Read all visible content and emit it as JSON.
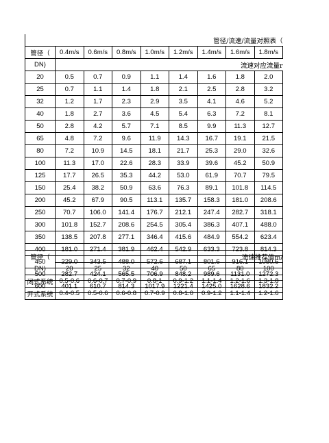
{
  "table1": {
    "title": "管径/流速/流量对照表（",
    "dn_header_top": "管径（",
    "dn_header_bottom": "DN)",
    "velocities": [
      "0.4m/s",
      "0.6m/s",
      "0.8m/s",
      "1.0m/s",
      "1.2m/s",
      "1.4m/s",
      "1.6m/s",
      "1.8m/s"
    ],
    "flow_caption": "流速对应流量r",
    "rows": [
      {
        "dn": "20",
        "values": [
          "0.5",
          "0.7",
          "0.9",
          "1.1",
          "1.4",
          "1.6",
          "1.8",
          "2.0"
        ]
      },
      {
        "dn": "25",
        "values": [
          "0.7",
          "1.1",
          "1.4",
          "1.8",
          "2.1",
          "2.5",
          "2.8",
          "3.2"
        ]
      },
      {
        "dn": "32",
        "values": [
          "1.2",
          "1.7",
          "2.3",
          "2.9",
          "3.5",
          "4.1",
          "4.6",
          "5.2"
        ]
      },
      {
        "dn": "40",
        "values": [
          "1.8",
          "2.7",
          "3.6",
          "4.5",
          "5.4",
          "6.3",
          "7.2",
          "8.1"
        ]
      },
      {
        "dn": "50",
        "values": [
          "2.8",
          "4.2",
          "5.7",
          "7.1",
          "8.5",
          "9.9",
          "11.3",
          "12.7"
        ]
      },
      {
        "dn": "65",
        "values": [
          "4.8",
          "7.2",
          "9.6",
          "11.9",
          "14.3",
          "16.7",
          "19.1",
          "21.5"
        ]
      },
      {
        "dn": "80",
        "values": [
          "7.2",
          "10.9",
          "14.5",
          "18.1",
          "21.7",
          "25.3",
          "29.0",
          "32.6"
        ]
      },
      {
        "dn": "100",
        "values": [
          "11.3",
          "17.0",
          "22.6",
          "28.3",
          "33.9",
          "39.6",
          "45.2",
          "50.9"
        ]
      },
      {
        "dn": "125",
        "values": [
          "17.7",
          "26.5",
          "35.3",
          "44.2",
          "53.0",
          "61.9",
          "70.7",
          "79.5"
        ]
      },
      {
        "dn": "150",
        "values": [
          "25.4",
          "38.2",
          "50.9",
          "63.6",
          "76.3",
          "89.1",
          "101.8",
          "114.5"
        ]
      },
      {
        "dn": "200",
        "values": [
          "45.2",
          "67.9",
          "90.5",
          "113.1",
          "135.7",
          "158.3",
          "181.0",
          "208.6"
        ]
      },
      {
        "dn": "250",
        "values": [
          "70.7",
          "106.0",
          "141.4",
          "176.7",
          "212.1",
          "247.4",
          "282.7",
          "318.1"
        ]
      },
      {
        "dn": "300",
        "values": [
          "101.8",
          "152.7",
          "208.6",
          "254.5",
          "305.4",
          "386.3",
          "407.1",
          "488.0"
        ]
      },
      {
        "dn": "350",
        "values": [
          "138.5",
          "207.8",
          "277.1",
          "346.4",
          "415.6",
          "484.9",
          "554.2",
          "623.4"
        ]
      },
      {
        "dn": "400",
        "values": [
          "181.0",
          "271.4",
          "381.9",
          "462.4",
          "542.9",
          "633.3",
          "723.8",
          "814.3"
        ]
      },
      {
        "dn": "450",
        "values": [
          "229.0",
          "343.5",
          "488.0",
          "572.6",
          "687.1",
          "801.6",
          "916.1",
          "1080.6"
        ]
      },
      {
        "dn": "500",
        "values": [
          "282.7",
          "424.1",
          "565.5",
          "706.9",
          "848.2",
          "989.6",
          "1131.0",
          "1272.3"
        ]
      },
      {
        "dn": "600",
        "values": [
          "401.1",
          "610.7",
          "814.3",
          "1017.9",
          "1221.4",
          "1425.0",
          "1628.6",
          "1832.2"
        ]
      }
    ]
  },
  "table2": {
    "dn_header_top": "管径（",
    "dn_header_bottom": "DN)",
    "caption": "流速推荐值m/",
    "dns": [
      "20",
      "25",
      "32",
      "40",
      "50",
      "65",
      "80",
      "100"
    ],
    "rows": [
      {
        "label": "闭式系统",
        "values": [
          "0.5-0.6",
          "0.6-0.7",
          "0.7-0.9",
          "0.8-1",
          "0.9-1.2",
          "1.1-1.4",
          "1.2-1.6",
          "1.3-1.8"
        ]
      },
      {
        "label": "开式系统",
        "values": [
          "0.4-0.5",
          "0.5-0.6",
          "0.6-0.8",
          "0.7-0.9",
          "0.8-1.0",
          "0.9-1.2",
          "1.1-1.4",
          "1.2-1.6"
        ]
      }
    ]
  }
}
